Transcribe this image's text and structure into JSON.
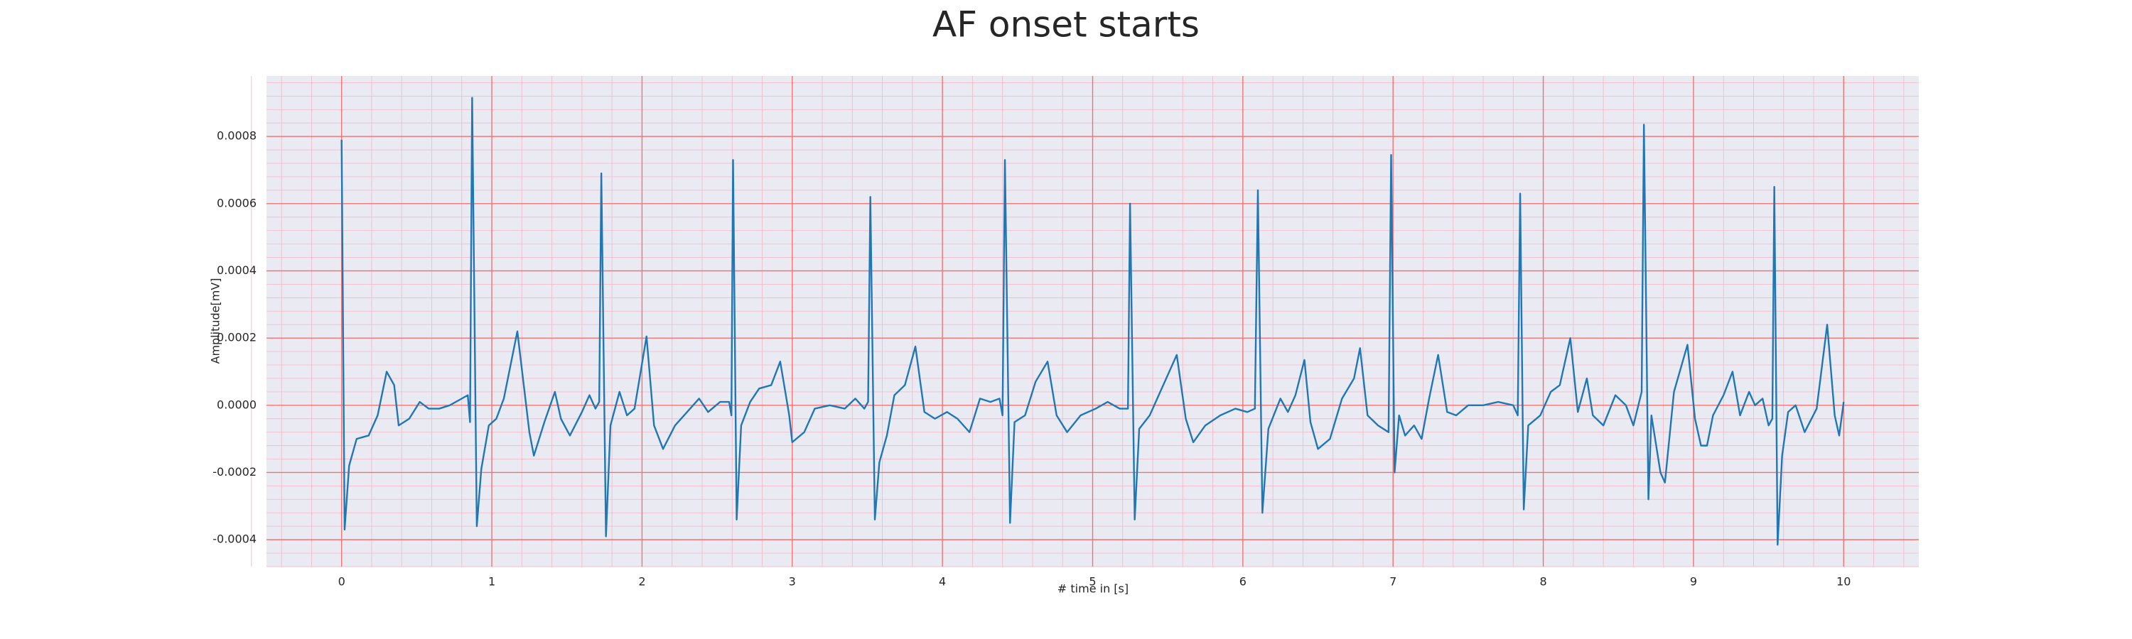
{
  "chart_data": {
    "type": "line",
    "title": "AF onset starts",
    "xlabel": "# time in [s]",
    "ylabel": "Amplitude[mV]",
    "color": "#1f77b4",
    "grid": true,
    "minor_divisions": 5,
    "xlim": [
      -0.5,
      10.5
    ],
    "ylim": [
      -0.00048,
      0.00098
    ],
    "xticks": [
      0,
      1,
      2,
      3,
      4,
      5,
      6,
      7,
      8,
      9,
      10
    ],
    "yticks": [
      -0.0004,
      -0.0002,
      {
        "value": 0,
        "label": "0.0000"
      },
      0.0002,
      0.0004,
      0.0006,
      0.0008
    ],
    "x": [
      0,
      0.02,
      0.05,
      0.1,
      0.18,
      0.24,
      0.3,
      0.35,
      0.38,
      0.45,
      0.52,
      0.58,
      0.65,
      0.72,
      0.8,
      0.84,
      0.855,
      0.869,
      0.9,
      0.93,
      0.98,
      1.03,
      1.08,
      1.17,
      1.25,
      1.28,
      1.35,
      1.42,
      1.46,
      1.52,
      1.6,
      1.65,
      1.69,
      1.715,
      1.729,
      1.76,
      1.79,
      1.85,
      1.9,
      1.95,
      2.03,
      2.08,
      2.14,
      2.22,
      2.3,
      2.38,
      2.44,
      2.52,
      2.58,
      2.595,
      2.606,
      2.63,
      2.66,
      2.72,
      2.78,
      2.86,
      2.92,
      2.98,
      3,
      3.08,
      3.15,
      3.25,
      3.35,
      3.42,
      3.48,
      3.505,
      3.52,
      3.55,
      3.58,
      3.63,
      3.68,
      3.75,
      3.82,
      3.88,
      3.95,
      4.03,
      4.1,
      4.18,
      4.25,
      4.32,
      4.38,
      4.4,
      4.416,
      4.45,
      4.48,
      4.55,
      4.62,
      4.7,
      4.76,
      4.83,
      4.92,
      5.02,
      5.1,
      5.18,
      5.235,
      5.249,
      5.28,
      5.31,
      5.38,
      5.46,
      5.56,
      5.62,
      5.67,
      5.75,
      5.85,
      5.95,
      6.03,
      6.08,
      6.1,
      6.13,
      6.17,
      6.25,
      6.3,
      6.35,
      6.41,
      6.45,
      6.5,
      6.58,
      6.66,
      6.74,
      6.78,
      6.83,
      6.9,
      6.97,
      6.987,
      7.01,
      7.04,
      7.08,
      7.14,
      7.19,
      7.24,
      7.3,
      7.36,
      7.42,
      7.5,
      7.6,
      7.7,
      7.8,
      7.83,
      7.846,
      7.87,
      7.9,
      7.98,
      8.05,
      8.11,
      8.18,
      8.23,
      8.29,
      8.33,
      8.4,
      8.48,
      8.55,
      8.6,
      8.655,
      8.67,
      8.7,
      8.72,
      8.78,
      8.81,
      8.87,
      8.96,
      9.01,
      9.05,
      9.09,
      9.13,
      9.2,
      9.26,
      9.31,
      9.37,
      9.41,
      9.46,
      9.5,
      9.525,
      9.538,
      9.56,
      9.59,
      9.63,
      9.68,
      9.74,
      9.82,
      9.89,
      9.94,
      9.97,
      10
    ],
    "values": [
      0.00079,
      -0.00037,
      -0.00018,
      -0.0001,
      -9e-05,
      -3e-05,
      0.0001,
      6e-05,
      -6e-05,
      -4e-05,
      1e-05,
      -1e-05,
      -1e-05,
      0,
      2e-05,
      3e-05,
      -5e-05,
      0.000915,
      -0.00036,
      -0.00019,
      -6e-05,
      -4e-05,
      2e-05,
      0.00022,
      -8e-05,
      -0.00015,
      -5e-05,
      4e-05,
      -4e-05,
      -9e-05,
      -2e-05,
      3e-05,
      -1e-05,
      1e-05,
      0.00069,
      -0.00039,
      -6e-05,
      4e-05,
      -3e-05,
      -1e-05,
      0.000205,
      -6e-05,
      -0.00013,
      -6e-05,
      -2e-05,
      2e-05,
      -2e-05,
      1e-05,
      1e-05,
      -3e-05,
      0.00073,
      -0.00034,
      -6e-05,
      1e-05,
      5e-05,
      6e-05,
      0.00013,
      -3e-05,
      -0.00011,
      -8e-05,
      -1e-05,
      0,
      -1e-05,
      2e-05,
      -1e-05,
      1e-05,
      0.00062,
      -0.00034,
      -0.00017,
      -9e-05,
      3e-05,
      6e-05,
      0.000175,
      -2e-05,
      -4e-05,
      -2e-05,
      -4e-05,
      -8e-05,
      2e-05,
      1e-05,
      2e-05,
      -3e-05,
      0.00073,
      -0.00035,
      -5e-05,
      -3e-05,
      7e-05,
      0.00013,
      -3e-05,
      -8e-05,
      -3e-05,
      -1e-05,
      1e-05,
      -1e-05,
      -1e-05,
      0.0006,
      -0.00034,
      -7e-05,
      -3e-05,
      5e-05,
      0.00015,
      -4e-05,
      -0.00011,
      -6e-05,
      -3e-05,
      -1e-05,
      -2e-05,
      -1e-05,
      0.00064,
      -0.00032,
      -7e-05,
      2e-05,
      -2e-05,
      3e-05,
      0.000135,
      -5e-05,
      -0.00013,
      -0.0001,
      2e-05,
      8e-05,
      0.00017,
      -3e-05,
      -6e-05,
      -8e-05,
      0.000745,
      -0.0002,
      -3e-05,
      -9e-05,
      -6e-05,
      -0.0001,
      2e-05,
      0.00015,
      -2e-05,
      -3e-05,
      0,
      0,
      1e-05,
      0,
      -3e-05,
      0.00063,
      -0.00031,
      -6e-05,
      -3e-05,
      4e-05,
      6e-05,
      0.0002,
      -2e-05,
      8e-05,
      -3e-05,
      -6e-05,
      3e-05,
      0,
      -6e-05,
      4e-05,
      0.000835,
      -0.00028,
      -3e-05,
      -0.0002,
      -0.00023,
      4e-05,
      0.00018,
      -4e-05,
      -0.00012,
      -0.00012,
      -3e-05,
      3e-05,
      0.0001,
      -3e-05,
      4e-05,
      0,
      2e-05,
      -6e-05,
      -4e-05,
      0.00065,
      -0.000415,
      -0.00015,
      -2e-05,
      0,
      -8e-05,
      -1e-05,
      0.00024,
      -3e-05,
      -9e-05,
      1e-05
    ]
  }
}
